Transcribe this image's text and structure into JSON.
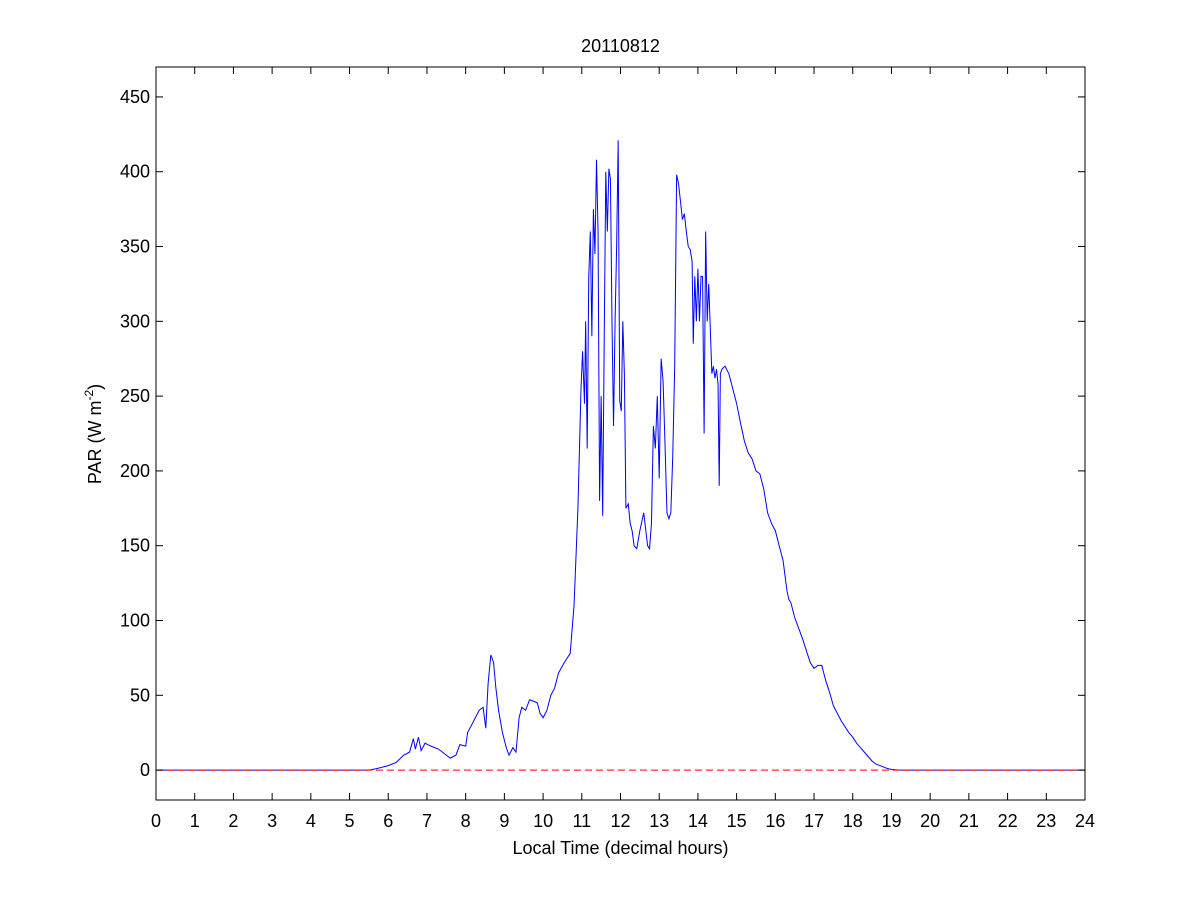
{
  "chart_data": {
    "type": "line",
    "title": "20110812",
    "xlabel": "Local Time (decimal hours)",
    "ylabel": {
      "text": "PAR (W m",
      "superscript": "-2",
      "suffix": ")"
    },
    "xlim": [
      0,
      24
    ],
    "ylim": [
      -20,
      470
    ],
    "xticks": [
      0,
      1,
      2,
      3,
      4,
      5,
      6,
      7,
      8,
      9,
      10,
      11,
      12,
      13,
      14,
      15,
      16,
      17,
      18,
      19,
      20,
      21,
      22,
      23,
      24
    ],
    "yticks": [
      0,
      50,
      100,
      150,
      200,
      250,
      300,
      350,
      400,
      450
    ],
    "grid": false,
    "series": [
      {
        "color": "#0000ff",
        "style": "solid",
        "points": [
          [
            0,
            0
          ],
          [
            5.5,
            0
          ],
          [
            5.7,
            1
          ],
          [
            6.0,
            3
          ],
          [
            6.2,
            5
          ],
          [
            6.4,
            10
          ],
          [
            6.55,
            12
          ],
          [
            6.65,
            21
          ],
          [
            6.7,
            14
          ],
          [
            6.78,
            22
          ],
          [
            6.85,
            13
          ],
          [
            6.95,
            18
          ],
          [
            7.1,
            16
          ],
          [
            7.3,
            14
          ],
          [
            7.5,
            10
          ],
          [
            7.6,
            8
          ],
          [
            7.75,
            10
          ],
          [
            7.85,
            17
          ],
          [
            8.0,
            16
          ],
          [
            8.05,
            25
          ],
          [
            8.15,
            30
          ],
          [
            8.25,
            35
          ],
          [
            8.35,
            40
          ],
          [
            8.45,
            42
          ],
          [
            8.52,
            28
          ],
          [
            8.58,
            58
          ],
          [
            8.65,
            77
          ],
          [
            8.72,
            72
          ],
          [
            8.78,
            55
          ],
          [
            8.85,
            40
          ],
          [
            8.95,
            25
          ],
          [
            9.05,
            15
          ],
          [
            9.12,
            10
          ],
          [
            9.22,
            15
          ],
          [
            9.3,
            12
          ],
          [
            9.38,
            35
          ],
          [
            9.45,
            42
          ],
          [
            9.55,
            40
          ],
          [
            9.65,
            47
          ],
          [
            9.75,
            46
          ],
          [
            9.85,
            45
          ],
          [
            9.92,
            38
          ],
          [
            10.0,
            35
          ],
          [
            10.1,
            40
          ],
          [
            10.2,
            50
          ],
          [
            10.3,
            55
          ],
          [
            10.4,
            65
          ],
          [
            10.55,
            72
          ],
          [
            10.7,
            78
          ],
          [
            10.8,
            110
          ],
          [
            10.9,
            175
          ],
          [
            10.98,
            255
          ],
          [
            11.02,
            280
          ],
          [
            11.07,
            245
          ],
          [
            11.1,
            300
          ],
          [
            11.14,
            215
          ],
          [
            11.18,
            330
          ],
          [
            11.22,
            360
          ],
          [
            11.26,
            290
          ],
          [
            11.3,
            375
          ],
          [
            11.34,
            345
          ],
          [
            11.38,
            408
          ],
          [
            11.42,
            360
          ],
          [
            11.46,
            180
          ],
          [
            11.5,
            250
          ],
          [
            11.54,
            170
          ],
          [
            11.58,
            290
          ],
          [
            11.62,
            400
          ],
          [
            11.66,
            360
          ],
          [
            11.7,
            402
          ],
          [
            11.74,
            395
          ],
          [
            11.78,
            300
          ],
          [
            11.82,
            230
          ],
          [
            11.86,
            300
          ],
          [
            11.9,
            350
          ],
          [
            11.94,
            421
          ],
          [
            11.98,
            247
          ],
          [
            12.02,
            240
          ],
          [
            12.06,
            300
          ],
          [
            12.1,
            265
          ],
          [
            12.14,
            175
          ],
          [
            12.2,
            178
          ],
          [
            12.25,
            165
          ],
          [
            12.3,
            160
          ],
          [
            12.35,
            150
          ],
          [
            12.42,
            148
          ],
          [
            12.5,
            160
          ],
          [
            12.6,
            172
          ],
          [
            12.7,
            150
          ],
          [
            12.75,
            148
          ],
          [
            12.8,
            165
          ],
          [
            12.85,
            230
          ],
          [
            12.9,
            215
          ],
          [
            12.95,
            250
          ],
          [
            13.0,
            195
          ],
          [
            13.05,
            275
          ],
          [
            13.1,
            260
          ],
          [
            13.15,
            218
          ],
          [
            13.2,
            172
          ],
          [
            13.25,
            168
          ],
          [
            13.3,
            172
          ],
          [
            13.35,
            210
          ],
          [
            13.4,
            270
          ],
          [
            13.45,
            398
          ],
          [
            13.5,
            392
          ],
          [
            13.55,
            380
          ],
          [
            13.6,
            368
          ],
          [
            13.65,
            372
          ],
          [
            13.7,
            360
          ],
          [
            13.75,
            350
          ],
          [
            13.8,
            348
          ],
          [
            13.85,
            340
          ],
          [
            13.88,
            285
          ],
          [
            13.92,
            330
          ],
          [
            13.96,
            300
          ],
          [
            14.0,
            335
          ],
          [
            14.04,
            300
          ],
          [
            14.08,
            330
          ],
          [
            14.12,
            330
          ],
          [
            14.16,
            225
          ],
          [
            14.2,
            360
          ],
          [
            14.24,
            300
          ],
          [
            14.28,
            325
          ],
          [
            14.32,
            295
          ],
          [
            14.36,
            265
          ],
          [
            14.4,
            270
          ],
          [
            14.44,
            262
          ],
          [
            14.48,
            268
          ],
          [
            14.52,
            258
          ],
          [
            14.55,
            190
          ],
          [
            14.58,
            265
          ],
          [
            14.62,
            268
          ],
          [
            14.7,
            270
          ],
          [
            14.8,
            265
          ],
          [
            14.9,
            255
          ],
          [
            15.0,
            245
          ],
          [
            15.1,
            232
          ],
          [
            15.2,
            220
          ],
          [
            15.3,
            212
          ],
          [
            15.4,
            208
          ],
          [
            15.5,
            200
          ],
          [
            15.6,
            198
          ],
          [
            15.7,
            188
          ],
          [
            15.8,
            172
          ],
          [
            15.9,
            165
          ],
          [
            16.0,
            160
          ],
          [
            16.1,
            150
          ],
          [
            16.2,
            140
          ],
          [
            16.3,
            120
          ],
          [
            16.35,
            114
          ],
          [
            16.4,
            112
          ],
          [
            16.5,
            102
          ],
          [
            16.6,
            95
          ],
          [
            16.7,
            88
          ],
          [
            16.8,
            80
          ],
          [
            16.9,
            72
          ],
          [
            17.0,
            68
          ],
          [
            17.1,
            70
          ],
          [
            17.2,
            70
          ],
          [
            17.3,
            60
          ],
          [
            17.4,
            52
          ],
          [
            17.5,
            43
          ],
          [
            17.6,
            38
          ],
          [
            17.7,
            33
          ],
          [
            17.8,
            29
          ],
          [
            17.9,
            25
          ],
          [
            18.0,
            22
          ],
          [
            18.1,
            18
          ],
          [
            18.2,
            15
          ],
          [
            18.3,
            12
          ],
          [
            18.4,
            9
          ],
          [
            18.5,
            6
          ],
          [
            18.6,
            4
          ],
          [
            18.7,
            3
          ],
          [
            18.8,
            2
          ],
          [
            18.9,
            1
          ],
          [
            19.0,
            0.5
          ],
          [
            19.2,
            0
          ],
          [
            24,
            0
          ]
        ]
      },
      {
        "color": "#ff0000",
        "style": "dashed",
        "points": [
          [
            0,
            0
          ],
          [
            24,
            0
          ]
        ]
      }
    ]
  }
}
